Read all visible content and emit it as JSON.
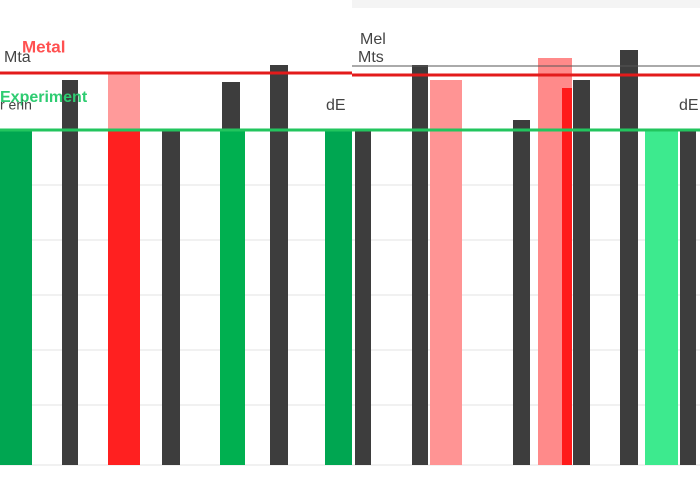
{
  "legend": {
    "items": [
      "Metal",
      "Experiment"
    ]
  },
  "ghost_text": [
    "Mta",
    "r erin",
    "Mel",
    "Mts",
    "dE",
    "dE"
  ]
}
